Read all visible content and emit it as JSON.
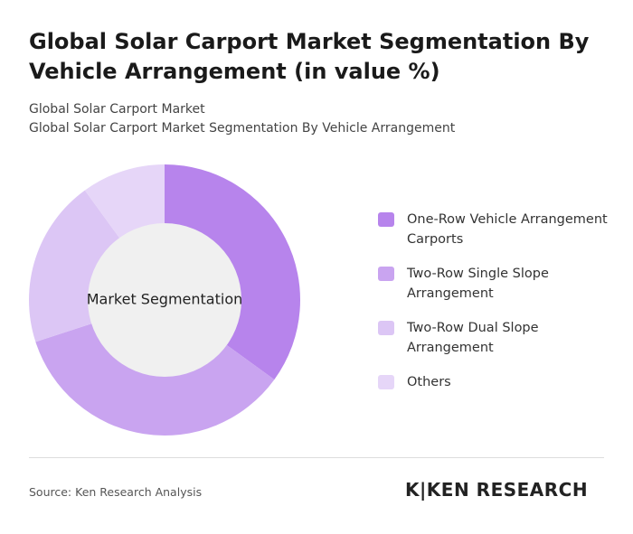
{
  "chart_data": {
    "type": "donut",
    "title": "Global Solar Carport Market Segmentation By Vehicle Arrangement (in value %)",
    "subtitle": "Global Solar Carport Market",
    "subtitle2": "Global Solar Carport Market Segmentation By Vehicle Arrangement",
    "center_label": "Market Segmentation",
    "categories": [
      "One-Row Vehicle Arrangement Carports",
      "Two-Row Single Slope Arrangement",
      "Two-Row Dual Slope Arrangement",
      "Others"
    ],
    "values": [
      35,
      35,
      20,
      10
    ],
    "colors": [
      "#b784ec",
      "#c9a4f0",
      "#dcc6f5",
      "#e6d6f8"
    ]
  },
  "source": "Source: Ken Research Analysis",
  "brand": "K|KEN RESEARCH"
}
